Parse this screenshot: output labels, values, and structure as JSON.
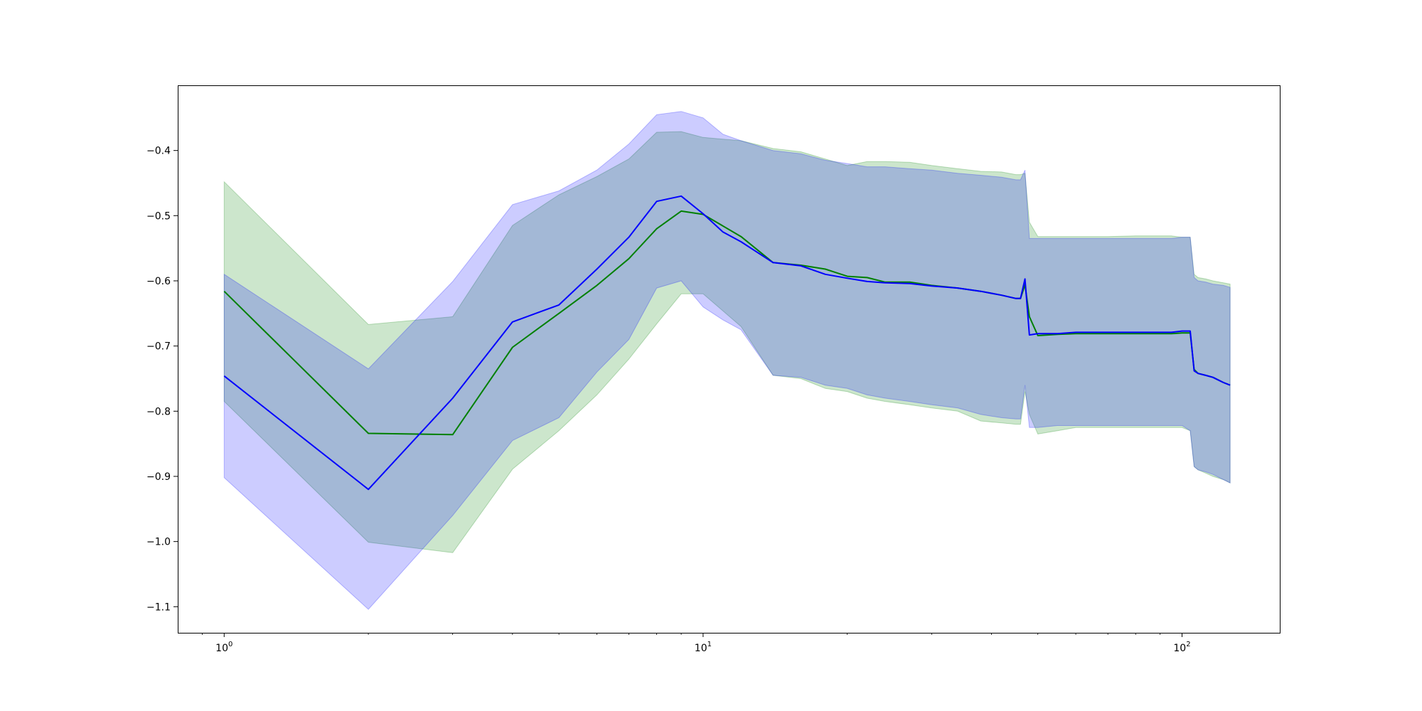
{
  "chart_data": {
    "type": "line",
    "title": "",
    "xlabel": "",
    "ylabel": "",
    "xscale": "log",
    "xlim": [
      0.8,
      160
    ],
    "ylim": [
      -1.14,
      -0.3
    ],
    "grid": false,
    "legend": "none",
    "x_ticks": [
      {
        "value": 1,
        "base": "10",
        "exp": "0"
      },
      {
        "value": 10,
        "base": "10",
        "exp": "1"
      },
      {
        "value": 100,
        "base": "10",
        "exp": "2"
      }
    ],
    "y_ticks": [
      {
        "value": -0.4,
        "label": "−0.4"
      },
      {
        "value": -0.5,
        "label": "−0.5"
      },
      {
        "value": -0.6,
        "label": "−0.6"
      },
      {
        "value": -0.7,
        "label": "−0.7"
      },
      {
        "value": -0.8,
        "label": "−0.8"
      },
      {
        "value": -0.9,
        "label": "−0.9"
      },
      {
        "value": -1.0,
        "label": "−1.0"
      },
      {
        "value": -1.1,
        "label": "−1.1"
      }
    ],
    "series": [
      {
        "color": "#008000",
        "fill_color": "#008000",
        "x": [
          1,
          2,
          3,
          4,
          5,
          6,
          7,
          8,
          9,
          10,
          12,
          14,
          16,
          18,
          20,
          22,
          24,
          27,
          30,
          34,
          38,
          42,
          45,
          46,
          47,
          48,
          50,
          55,
          60,
          70,
          80,
          95,
          100,
          104,
          106,
          108,
          112,
          116,
          122,
          126
        ],
        "y": [
          -0.616,
          -0.834,
          -0.836,
          -0.702,
          -0.65,
          -0.607,
          -0.566,
          -0.52,
          -0.493,
          -0.498,
          -0.532,
          -0.572,
          -0.576,
          -0.582,
          -0.593,
          -0.595,
          -0.602,
          -0.602,
          -0.607,
          -0.611,
          -0.616,
          -0.622,
          -0.627,
          -0.627,
          -0.606,
          -0.655,
          -0.684,
          -0.682,
          -0.681,
          -0.681,
          -0.681,
          -0.681,
          -0.68,
          -0.68,
          -0.736,
          -0.742,
          -0.745,
          -0.748,
          -0.756,
          -0.76
        ],
        "lower": [
          -0.785,
          -1.001,
          -1.017,
          -0.889,
          -0.83,
          -0.775,
          -0.72,
          -0.666,
          -0.62,
          -0.62,
          -0.67,
          -0.745,
          -0.75,
          -0.765,
          -0.77,
          -0.78,
          -0.785,
          -0.79,
          -0.795,
          -0.8,
          -0.815,
          -0.818,
          -0.82,
          -0.82,
          -0.77,
          -0.805,
          -0.835,
          -0.83,
          -0.825,
          -0.825,
          -0.825,
          -0.825,
          -0.825,
          -0.83,
          -0.885,
          -0.89,
          -0.895,
          -0.9,
          -0.905,
          -0.91
        ],
        "upper": [
          -0.448,
          -0.667,
          -0.655,
          -0.515,
          -0.468,
          -0.44,
          -0.413,
          -0.372,
          -0.371,
          -0.38,
          -0.385,
          -0.397,
          -0.402,
          -0.413,
          -0.423,
          -0.417,
          -0.417,
          -0.418,
          -0.423,
          -0.428,
          -0.432,
          -0.433,
          -0.437,
          -0.437,
          -0.435,
          -0.51,
          -0.532,
          -0.532,
          -0.532,
          -0.532,
          -0.531,
          -0.531,
          -0.533,
          -0.533,
          -0.59,
          -0.595,
          -0.597,
          -0.6,
          -0.603,
          -0.605
        ]
      },
      {
        "color": "#0000ff",
        "fill_color": "#0000ff",
        "x": [
          1,
          2,
          3,
          4,
          5,
          6,
          7,
          8,
          9,
          10,
          11,
          12,
          14,
          16,
          18,
          20,
          22,
          24,
          27,
          30,
          34,
          38,
          42,
          45,
          46,
          47,
          48,
          50,
          55,
          60,
          70,
          80,
          95,
          100,
          104,
          106,
          108,
          112,
          116,
          122,
          126
        ],
        "y": [
          -0.746,
          -0.92,
          -0.78,
          -0.663,
          -0.637,
          -0.582,
          -0.533,
          -0.478,
          -0.47,
          -0.497,
          -0.525,
          -0.54,
          -0.572,
          -0.577,
          -0.59,
          -0.596,
          -0.601,
          -0.603,
          -0.604,
          -0.608,
          -0.611,
          -0.616,
          -0.622,
          -0.627,
          -0.627,
          -0.597,
          -0.683,
          -0.681,
          -0.681,
          -0.679,
          -0.679,
          -0.679,
          -0.679,
          -0.677,
          -0.677,
          -0.738,
          -0.742,
          -0.745,
          -0.748,
          -0.756,
          -0.76
        ],
        "lower": [
          -0.902,
          -1.104,
          -0.96,
          -0.845,
          -0.81,
          -0.74,
          -0.69,
          -0.611,
          -0.6,
          -0.64,
          -0.66,
          -0.675,
          -0.745,
          -0.748,
          -0.76,
          -0.765,
          -0.775,
          -0.78,
          -0.785,
          -0.79,
          -0.795,
          -0.805,
          -0.81,
          -0.812,
          -0.812,
          -0.76,
          -0.825,
          -0.825,
          -0.822,
          -0.822,
          -0.822,
          -0.822,
          -0.822,
          -0.822,
          -0.83,
          -0.885,
          -0.89,
          -0.893,
          -0.897,
          -0.905,
          -0.91
        ],
        "upper": [
          -0.59,
          -0.735,
          -0.601,
          -0.483,
          -0.462,
          -0.43,
          -0.39,
          -0.345,
          -0.34,
          -0.35,
          -0.375,
          -0.385,
          -0.4,
          -0.405,
          -0.415,
          -0.42,
          -0.425,
          -0.425,
          -0.428,
          -0.43,
          -0.435,
          -0.438,
          -0.441,
          -0.445,
          -0.445,
          -0.43,
          -0.535,
          -0.535,
          -0.535,
          -0.535,
          -0.535,
          -0.535,
          -0.535,
          -0.533,
          -0.533,
          -0.595,
          -0.6,
          -0.602,
          -0.605,
          -0.607,
          -0.61
        ]
      }
    ]
  }
}
